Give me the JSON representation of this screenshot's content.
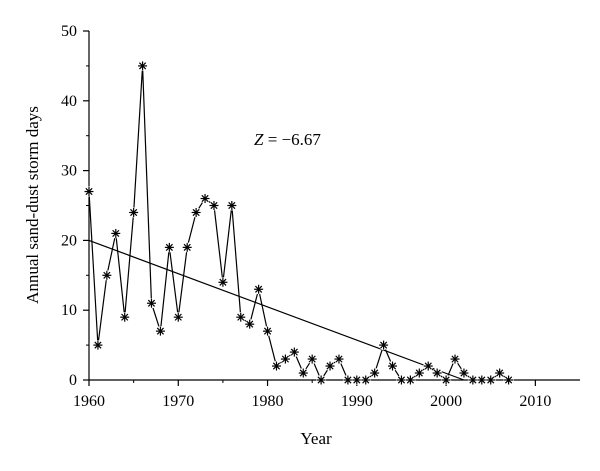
{
  "chart_data": {
    "type": "line",
    "xlabel": "Year",
    "ylabel": "Annual sand-dust storm days",
    "xlim": [
      1960,
      2015
    ],
    "ylim": [
      0,
      50
    ],
    "xticks": [
      1960,
      1970,
      1980,
      1990,
      2000,
      2010
    ],
    "yticks": [
      0,
      10,
      20,
      30,
      40,
      50
    ],
    "marker": "asterisk",
    "series": [
      {
        "x": [
          1960,
          1961,
          1962,
          1963,
          1964,
          1965,
          1966,
          1967,
          1968,
          1969,
          1970,
          1971,
          1972,
          1973,
          1974,
          1975,
          1976,
          1977,
          1978,
          1979,
          1980,
          1981,
          1982,
          1983,
          1984,
          1985,
          1986,
          1987,
          1988,
          1989,
          1990,
          1991,
          1992,
          1993,
          1994,
          1995,
          1996,
          1997,
          1998,
          1999,
          2000,
          2001,
          2002,
          2003,
          2004,
          2005,
          2006,
          2007
        ],
        "y": [
          27,
          5,
          15,
          21,
          9,
          24,
          45,
          11,
          7,
          19,
          9,
          19,
          24,
          26,
          25,
          14,
          25,
          9,
          8,
          13,
          7,
          2,
          3,
          4,
          1,
          3,
          0,
          2,
          3,
          0,
          0,
          0,
          1,
          5,
          2,
          0,
          0,
          1,
          2,
          1,
          0,
          3,
          1,
          0,
          0,
          0,
          1,
          0
        ]
      }
    ],
    "trendline": {
      "x": [
        1960,
        2002
      ],
      "y": [
        20,
        0
      ]
    },
    "annotation": {
      "z_symbol": "Z",
      "z_text": " = −6.67"
    }
  }
}
